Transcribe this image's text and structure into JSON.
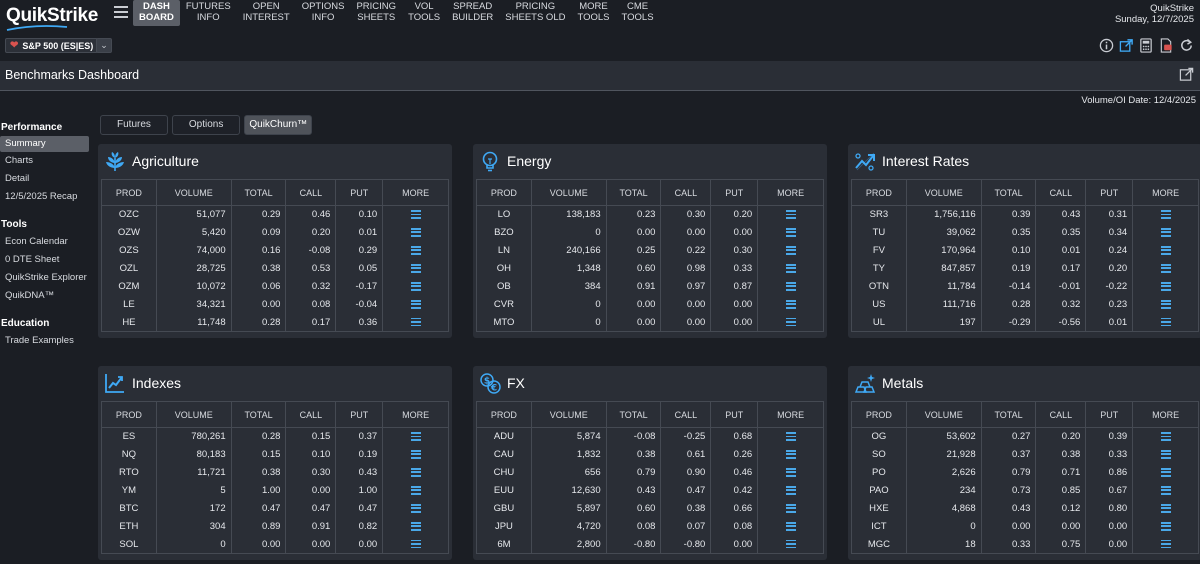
{
  "brand": {
    "name": "QuikStrike"
  },
  "nav": [
    {
      "l1": "DASH",
      "l2": "BOARD",
      "active": true
    },
    {
      "l1": "FUTURES",
      "l2": "INFO"
    },
    {
      "l1": "OPEN",
      "l2": "INTEREST"
    },
    {
      "l1": "OPTIONS",
      "l2": "INFO"
    },
    {
      "l1": "PRICING",
      "l2": "SHEETS"
    },
    {
      "l1": "VOL",
      "l2": "TOOLS"
    },
    {
      "l1": "SPREAD",
      "l2": "BUILDER"
    },
    {
      "l1": "PRICING",
      "l2": "SHEETS OLD"
    },
    {
      "l1": "MORE",
      "l2": "TOOLS"
    },
    {
      "l1": "CME",
      "l2": "TOOLS"
    }
  ],
  "header": {
    "app_name": "QuikStrike",
    "date": "Sunday, 12/7/2025"
  },
  "product": {
    "label": "S&P 500 (ES|ES)"
  },
  "page": {
    "title": "Benchmarks Dashboard",
    "volume_date": "Volume/OI Date: 12/4/2025"
  },
  "sidebar": {
    "sections": [
      {
        "heading": "Performance",
        "items": [
          "Summary",
          "Charts",
          "Detail",
          "12/5/2025 Recap"
        ]
      },
      {
        "heading": "Tools",
        "items": [
          "Econ Calendar",
          "0 DTE Sheet",
          "QuikStrike Explorer",
          "QuikDNA™"
        ]
      },
      {
        "heading": "Education",
        "items": [
          "Trade Examples"
        ]
      }
    ],
    "active_item": "Summary"
  },
  "tabs": [
    "Futures",
    "Options",
    "QuikChurn™"
  ],
  "active_tab": "QuikChurn™",
  "columns": [
    "PROD",
    "VOLUME",
    "TOTAL",
    "CALL",
    "PUT",
    "MORE"
  ],
  "panels": [
    {
      "title": "Agriculture",
      "icon": "wheat-icon",
      "rows": [
        [
          "OZC",
          "51,077",
          "0.29",
          "0.46",
          "0.10"
        ],
        [
          "OZW",
          "5,420",
          "0.09",
          "0.20",
          "0.01"
        ],
        [
          "OZS",
          "74,000",
          "0.16",
          "-0.08",
          "0.29"
        ],
        [
          "OZL",
          "28,725",
          "0.38",
          "0.53",
          "0.05"
        ],
        [
          "OZM",
          "10,072",
          "0.06",
          "0.32",
          "-0.17"
        ],
        [
          "LE",
          "34,321",
          "0.00",
          "0.08",
          "-0.04"
        ],
        [
          "HE",
          "11,748",
          "0.28",
          "0.17",
          "0.36"
        ]
      ]
    },
    {
      "title": "Energy",
      "icon": "lightbulb-icon",
      "rows": [
        [
          "LO",
          "138,183",
          "0.23",
          "0.30",
          "0.20"
        ],
        [
          "BZO",
          "0",
          "0.00",
          "0.00",
          "0.00"
        ],
        [
          "LN",
          "240,166",
          "0.25",
          "0.22",
          "0.30"
        ],
        [
          "OH",
          "1,348",
          "0.60",
          "0.98",
          "0.33"
        ],
        [
          "OB",
          "384",
          "0.91",
          "0.97",
          "0.87"
        ],
        [
          "CVR",
          "0",
          "0.00",
          "0.00",
          "0.00"
        ],
        [
          "MTO",
          "0",
          "0.00",
          "0.00",
          "0.00"
        ]
      ]
    },
    {
      "title": "Interest Rates",
      "icon": "trend-up-icon",
      "rows": [
        [
          "SR3",
          "1,756,116",
          "0.39",
          "0.43",
          "0.31"
        ],
        [
          "TU",
          "39,062",
          "0.35",
          "0.35",
          "0.34"
        ],
        [
          "FV",
          "170,964",
          "0.10",
          "0.01",
          "0.24"
        ],
        [
          "TY",
          "847,857",
          "0.19",
          "0.17",
          "0.20"
        ],
        [
          "OTN",
          "11,784",
          "-0.14",
          "-0.01",
          "-0.22"
        ],
        [
          "US",
          "111,716",
          "0.28",
          "0.32",
          "0.23"
        ],
        [
          "UL",
          "197",
          "-0.29",
          "-0.56",
          "0.01"
        ]
      ]
    },
    {
      "title": "Indexes",
      "icon": "line-chart-icon",
      "rows": [
        [
          "ES",
          "780,261",
          "0.28",
          "0.15",
          "0.37"
        ],
        [
          "NQ",
          "80,183",
          "0.15",
          "0.10",
          "0.19"
        ],
        [
          "RTO",
          "11,721",
          "0.38",
          "0.30",
          "0.43"
        ],
        [
          "YM",
          "5",
          "1.00",
          "0.00",
          "1.00"
        ],
        [
          "BTC",
          "172",
          "0.47",
          "0.47",
          "0.47"
        ],
        [
          "ETH",
          "304",
          "0.89",
          "0.91",
          "0.82"
        ],
        [
          "SOL",
          "0",
          "0.00",
          "0.00",
          "0.00"
        ]
      ]
    },
    {
      "title": "FX",
      "icon": "currency-exchange-icon",
      "rows": [
        [
          "ADU",
          "5,874",
          "-0.08",
          "-0.25",
          "0.68"
        ],
        [
          "CAU",
          "1,832",
          "0.38",
          "0.61",
          "0.26"
        ],
        [
          "CHU",
          "656",
          "0.79",
          "0.90",
          "0.46"
        ],
        [
          "EUU",
          "12,630",
          "0.43",
          "0.47",
          "0.42"
        ],
        [
          "GBU",
          "5,897",
          "0.60",
          "0.38",
          "0.66"
        ],
        [
          "JPU",
          "4,720",
          "0.08",
          "0.07",
          "0.08"
        ],
        [
          "6M",
          "2,800",
          "-0.80",
          "-0.80",
          "0.00"
        ]
      ]
    },
    {
      "title": "Metals",
      "icon": "gold-bars-icon",
      "rows": [
        [
          "OG",
          "53,602",
          "0.27",
          "0.20",
          "0.39"
        ],
        [
          "SO",
          "21,928",
          "0.37",
          "0.38",
          "0.33"
        ],
        [
          "PO",
          "2,626",
          "0.79",
          "0.71",
          "0.86"
        ],
        [
          "PAO",
          "234",
          "0.73",
          "0.85",
          "0.67"
        ],
        [
          "HXE",
          "4,868",
          "0.43",
          "0.12",
          "0.80"
        ],
        [
          "ICT",
          "0",
          "0.00",
          "0.00",
          "0.00"
        ],
        [
          "MGC",
          "18",
          "0.33",
          "0.75",
          "0.00"
        ]
      ]
    }
  ]
}
